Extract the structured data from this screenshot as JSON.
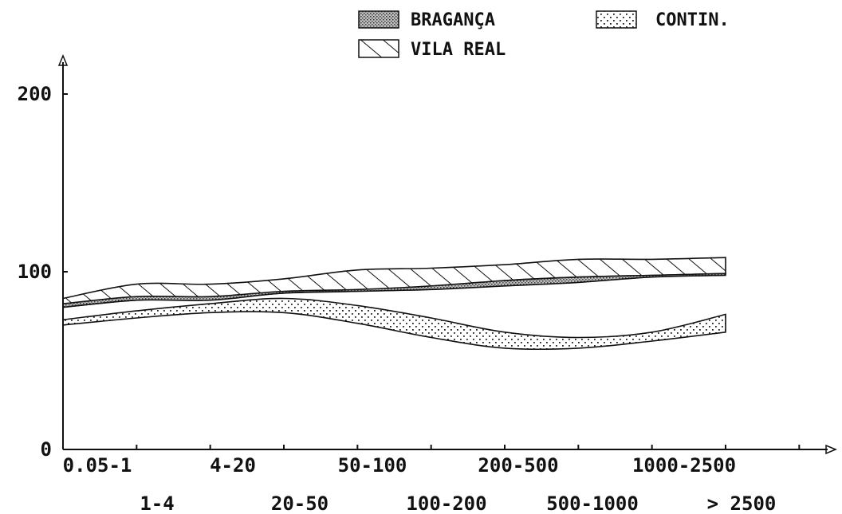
{
  "chart_data": {
    "type": "area",
    "title": "",
    "xlabel": "",
    "ylabel": "",
    "ylim": [
      0,
      200
    ],
    "y_ticks": [
      "0",
      "100",
      "200"
    ],
    "categories": [
      "0.05-1",
      "1-4",
      "4-20",
      "20-50",
      "50-100",
      "100-200",
      "200-500",
      "500-1000",
      "1000-2500",
      "> 2500"
    ],
    "legend": [
      "BRAGANÇA",
      "VILA REAL",
      "CONTIN."
    ],
    "series": [
      {
        "name": "BRAGANÇA",
        "fill": "dense-dots",
        "lower": [
          80,
          84,
          84,
          88,
          89,
          90,
          92,
          94,
          97,
          98
        ],
        "upper": [
          82,
          86,
          86,
          89,
          90,
          92,
          95,
          97,
          98,
          99
        ]
      },
      {
        "name": "VILA REAL",
        "fill": "diagonal-hatch",
        "lower": [
          80,
          84,
          85,
          88,
          89,
          91,
          95,
          97,
          98,
          99
        ],
        "upper": [
          85,
          93,
          93,
          96,
          101,
          102,
          104,
          107,
          107,
          108
        ]
      },
      {
        "name": "CONTIN.",
        "fill": "sparse-dots",
        "lower": [
          70,
          74,
          77,
          77,
          71,
          63,
          57,
          57,
          61,
          66
        ],
        "upper": [
          73,
          78,
          82,
          85,
          81,
          74,
          66,
          63,
          66,
          76
        ]
      }
    ],
    "grid": false,
    "legend_position": "top"
  }
}
